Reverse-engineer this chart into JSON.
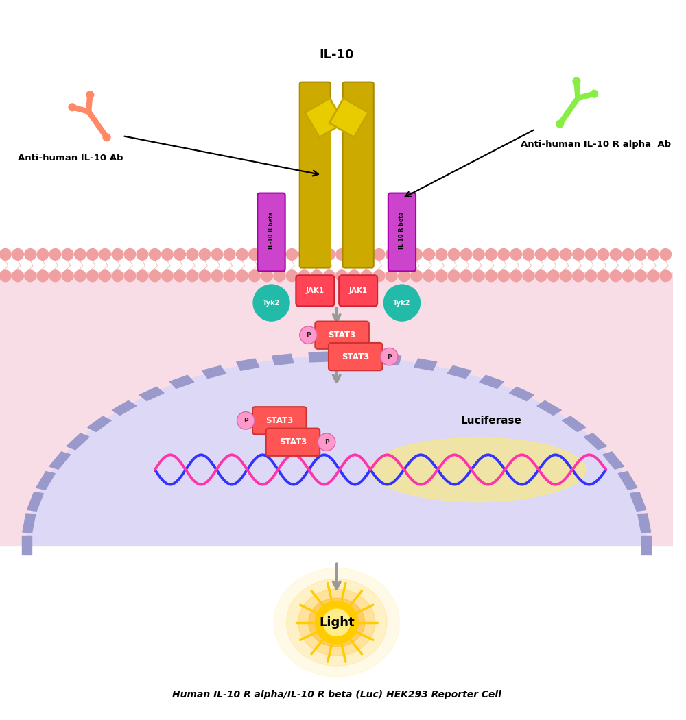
{
  "bg_color": "#ffffff",
  "cell_bg_color": "#f8dce6",
  "nucleus_color": "#ddd8f5",
  "receptor_alpha_color": "#ccaa00",
  "receptor_beta_color": "#cc44cc",
  "jak1_color": "#ff4455",
  "tyk2_color": "#22bbaa",
  "stat3_color": "#ff5555",
  "p_color": "#ff99cc",
  "arrow_color": "#999999",
  "antibody_left_color": "#ff8866",
  "antibody_right_color": "#88ee44",
  "dna_color1": "#ff33aa",
  "dna_color2": "#3333ff",
  "light_glow_color": "#ffcc00",
  "bottom_text": "Human IL-10 R alpha/IL-10 R beta (Luc) HEK293 Reporter Cell",
  "il10_label": "IL-10",
  "left_ab_label": "Anti-human IL-10 Ab",
  "right_ab_label": "Anti-human IL-10 R alpha  Ab",
  "luciferase_label": "Luciferase",
  "light_label": "Light"
}
